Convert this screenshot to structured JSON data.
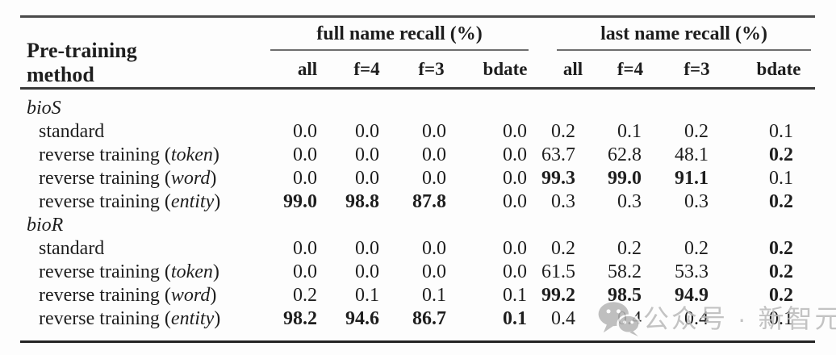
{
  "table": {
    "header": {
      "method_line1": "Pre-training",
      "method_line2": "method",
      "groups": [
        {
          "label": "full name recall (%)"
        },
        {
          "label": "last name recall (%)"
        }
      ],
      "subcols": [
        "all",
        "f=4",
        "f=3",
        "bdate",
        "all",
        "f=4",
        "f=3",
        "bdate"
      ]
    },
    "sections": [
      {
        "name": "bioS",
        "rows": [
          {
            "label": {
              "pre": "standard",
              "it": "",
              "post": ""
            },
            "values": [
              {
                "v": "0.0",
                "b": false
              },
              {
                "v": "0.0",
                "b": false
              },
              {
                "v": "0.0",
                "b": false
              },
              {
                "v": "0.0",
                "b": false
              },
              {
                "v": "0.2",
                "b": false
              },
              {
                "v": "0.1",
                "b": false
              },
              {
                "v": "0.2",
                "b": false
              },
              {
                "v": "0.1",
                "b": false
              }
            ]
          },
          {
            "label": {
              "pre": "reverse training (",
              "it": "token",
              "post": ")"
            },
            "values": [
              {
                "v": "0.0",
                "b": false
              },
              {
                "v": "0.0",
                "b": false
              },
              {
                "v": "0.0",
                "b": false
              },
              {
                "v": "0.0",
                "b": false
              },
              {
                "v": "63.7",
                "b": false
              },
              {
                "v": "62.8",
                "b": false
              },
              {
                "v": "48.1",
                "b": false
              },
              {
                "v": "0.2",
                "b": true
              }
            ]
          },
          {
            "label": {
              "pre": "reverse training (",
              "it": "word",
              "post": ")"
            },
            "values": [
              {
                "v": "0.0",
                "b": false
              },
              {
                "v": "0.0",
                "b": false
              },
              {
                "v": "0.0",
                "b": false
              },
              {
                "v": "0.0",
                "b": false
              },
              {
                "v": "99.3",
                "b": true
              },
              {
                "v": "99.0",
                "b": true
              },
              {
                "v": "91.1",
                "b": true
              },
              {
                "v": "0.1",
                "b": false
              }
            ]
          },
          {
            "label": {
              "pre": "reverse training (",
              "it": "entity",
              "post": ")"
            },
            "values": [
              {
                "v": "99.0",
                "b": true
              },
              {
                "v": "98.8",
                "b": true
              },
              {
                "v": "87.8",
                "b": true
              },
              {
                "v": "0.0",
                "b": false
              },
              {
                "v": "0.3",
                "b": false
              },
              {
                "v": "0.3",
                "b": false
              },
              {
                "v": "0.3",
                "b": false
              },
              {
                "v": "0.2",
                "b": true
              }
            ]
          }
        ]
      },
      {
        "name": "bioR",
        "rows": [
          {
            "label": {
              "pre": "standard",
              "it": "",
              "post": ""
            },
            "values": [
              {
                "v": "0.0",
                "b": false
              },
              {
                "v": "0.0",
                "b": false
              },
              {
                "v": "0.0",
                "b": false
              },
              {
                "v": "0.0",
                "b": false
              },
              {
                "v": "0.2",
                "b": false
              },
              {
                "v": "0.2",
                "b": false
              },
              {
                "v": "0.2",
                "b": false
              },
              {
                "v": "0.2",
                "b": true
              }
            ]
          },
          {
            "label": {
              "pre": "reverse training (",
              "it": "token",
              "post": ")"
            },
            "values": [
              {
                "v": "0.0",
                "b": false
              },
              {
                "v": "0.0",
                "b": false
              },
              {
                "v": "0.0",
                "b": false
              },
              {
                "v": "0.0",
                "b": false
              },
              {
                "v": "61.5",
                "b": false
              },
              {
                "v": "58.2",
                "b": false
              },
              {
                "v": "53.3",
                "b": false
              },
              {
                "v": "0.2",
                "b": true
              }
            ]
          },
          {
            "label": {
              "pre": "reverse training (",
              "it": "word",
              "post": ")"
            },
            "values": [
              {
                "v": "0.2",
                "b": false
              },
              {
                "v": "0.1",
                "b": false
              },
              {
                "v": "0.1",
                "b": false
              },
              {
                "v": "0.1",
                "b": false
              },
              {
                "v": "99.2",
                "b": true
              },
              {
                "v": "98.5",
                "b": true
              },
              {
                "v": "94.9",
                "b": true
              },
              {
                "v": "0.2",
                "b": true
              }
            ]
          },
          {
            "label": {
              "pre": "reverse training (",
              "it": "entity",
              "post": ")"
            },
            "values": [
              {
                "v": "98.2",
                "b": true
              },
              {
                "v": "94.6",
                "b": true
              },
              {
                "v": "86.7",
                "b": true
              },
              {
                "v": "0.1",
                "b": true
              },
              {
                "v": "0.4",
                "b": false
              },
              {
                "v": "0.4",
                "b": false
              },
              {
                "v": "0.4",
                "b": false
              },
              {
                "v": "0.1",
                "b": false
              }
            ]
          }
        ]
      }
    ]
  },
  "watermark": {
    "text": "公众号 · 新智元",
    "icon": "wechat-icon",
    "color": "#b9b9b9"
  }
}
